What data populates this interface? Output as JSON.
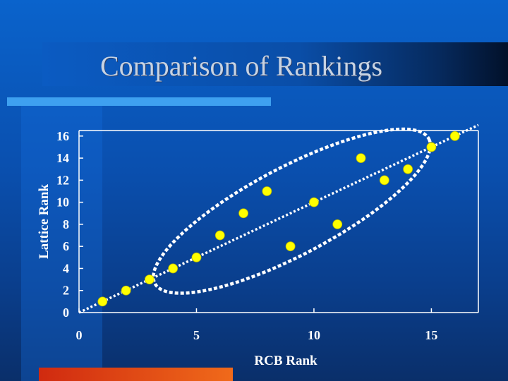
{
  "slide": {
    "title": "Comparison of Rankings"
  },
  "colors": {
    "point": "#ffff00",
    "point_stroke": "#b8b800",
    "axis": "#ffffff",
    "dashed": "#ffffff"
  },
  "chart_data": {
    "type": "scatter",
    "xlabel": "RCB Rank",
    "ylabel": "Lattice Rank",
    "xlim": [
      0,
      17
    ],
    "ylim": [
      0,
      16.5
    ],
    "x_ticks": [
      0,
      5,
      10,
      15
    ],
    "y_ticks": [
      0,
      2,
      4,
      6,
      8,
      10,
      12,
      14,
      16
    ],
    "grid": false,
    "legend": "none",
    "points": [
      {
        "x": 1,
        "y": 1
      },
      {
        "x": 2,
        "y": 2
      },
      {
        "x": 3,
        "y": 3
      },
      {
        "x": 4,
        "y": 4
      },
      {
        "x": 5,
        "y": 5
      },
      {
        "x": 6,
        "y": 7
      },
      {
        "x": 7,
        "y": 9
      },
      {
        "x": 8,
        "y": 11
      },
      {
        "x": 9,
        "y": 6
      },
      {
        "x": 10,
        "y": 10
      },
      {
        "x": 11,
        "y": 8
      },
      {
        "x": 12,
        "y": 14
      },
      {
        "x": 13,
        "y": 12
      },
      {
        "x": 14,
        "y": 13
      },
      {
        "x": 15,
        "y": 15
      },
      {
        "x": 16,
        "y": 16
      }
    ],
    "reference_line": {
      "style": "dotted",
      "from": [
        0,
        0
      ],
      "to": [
        17,
        17
      ]
    },
    "annotation": {
      "shape": "ellipse",
      "style": "dashed",
      "encloses_x_range": [
        4,
        14
      ]
    }
  }
}
